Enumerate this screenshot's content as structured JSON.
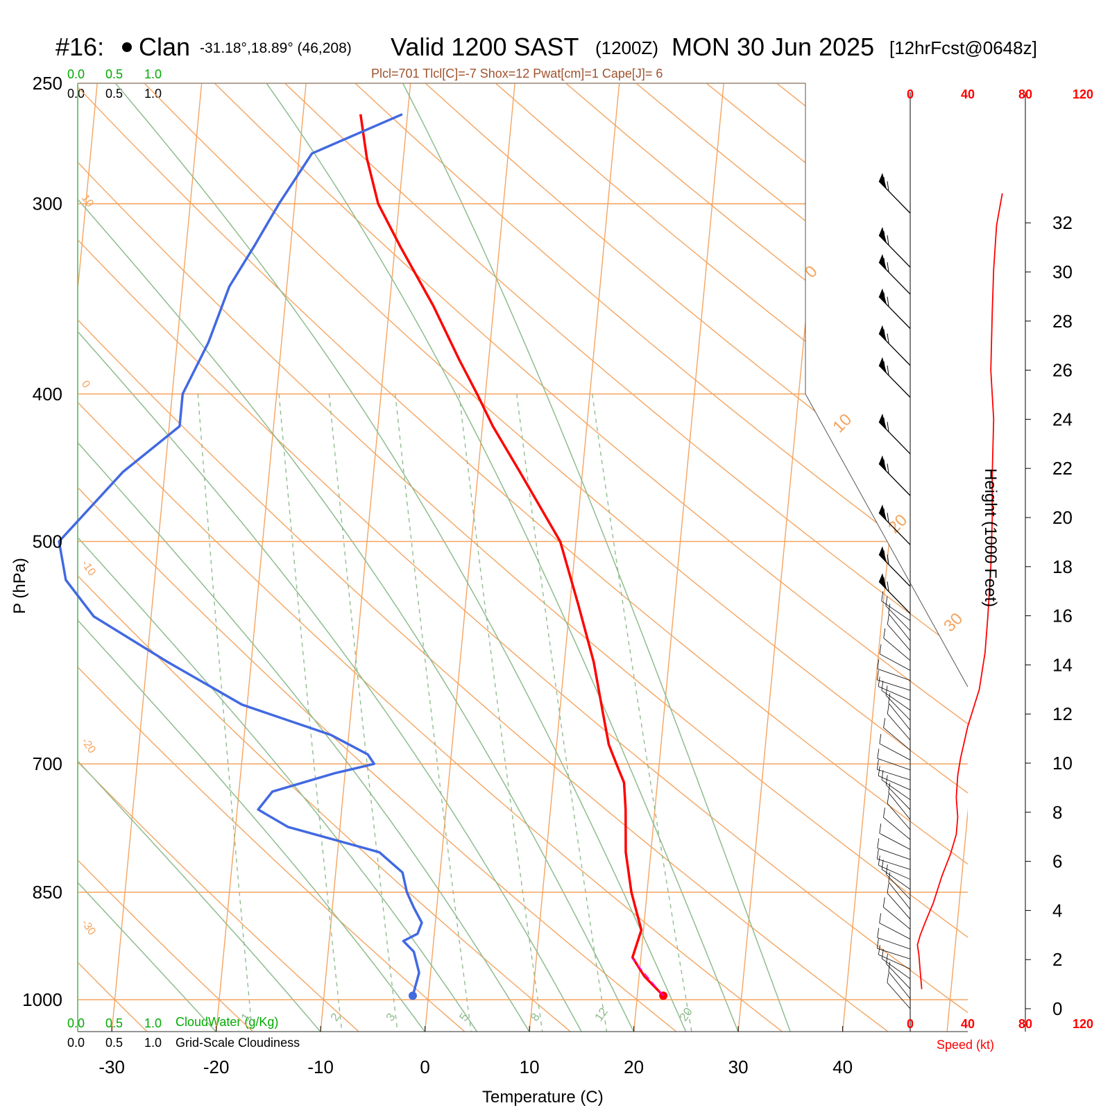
{
  "header": {
    "station_id": "#16:",
    "station_name": "Clan",
    "location": "-31.18°,18.89° (46,208)",
    "valid_main": "Valid 1200 SAST",
    "valid_z": "(1200Z)",
    "valid_date": "MON 30 Jun 2025",
    "forecast": "[12hrFcst@0648z]"
  },
  "indices": {
    "text": "Plcl=701 Tlcl[C]=-7 Shox=12 Pwat[cm]=1 Cape[J]= 6"
  },
  "cloud_scales": {
    "top_green": [
      "0.0",
      "0.5",
      "1.0"
    ],
    "top_black": [
      "0.0",
      "0.5",
      "1.0"
    ],
    "bottom_green": [
      "0.0",
      "0.5",
      "1.0"
    ],
    "bottom_black": [
      "0.0",
      "0.5",
      "1.0"
    ],
    "cloudwater_label": "CloudWater (g/Kg)",
    "cloudiness_label": "Grid-Scale Cloudiness"
  },
  "speed_axis": {
    "ticks": [
      "0",
      "40",
      "80",
      "120"
    ],
    "label": "Speed (kt)"
  },
  "colors": {
    "temperature": "#ff0000",
    "dewpoint": "#4169e1",
    "isotherm": "#f4a460",
    "dry_adiabat": "#f4a460",
    "moist_adiabat": "#8fbc8f",
    "mixing_ratio": "#8fbc8f",
    "parcel": "#ff00ff",
    "wind_speed": "#ff0000",
    "cloud_green": "#00aa00"
  },
  "chart_data": {
    "type": "line",
    "subtype": "skew-T log-P diagram",
    "xlabel": "Temperature (C)",
    "ylabel": "P (hPa)",
    "y2label": "Height (1000 Feet)",
    "x_ticks": [
      -30,
      -20,
      -10,
      0,
      10,
      20,
      30,
      40
    ],
    "p_ticks": [
      250,
      300,
      400,
      500,
      700,
      850,
      1000
    ],
    "height_ticks": [
      0,
      2,
      4,
      6,
      8,
      10,
      12,
      14,
      16,
      18,
      20,
      22,
      24,
      26,
      28,
      30,
      32
    ],
    "isotherm_labels": [
      {
        "t": -30,
        "text": "-30"
      },
      {
        "t": -20,
        "text": "-20"
      },
      {
        "t": -10,
        "text": "-10"
      },
      {
        "t": 0,
        "text": "0"
      },
      {
        "t": 10,
        "text": "10"
      },
      {
        "t": 0,
        "text": "0"
      },
      {
        "t": 10,
        "text": "10"
      },
      {
        "t": 20,
        "text": "20"
      },
      {
        "t": 30,
        "text": "30"
      }
    ],
    "mixing_ratio_labels": [
      "1",
      "2",
      "3",
      "5",
      "8",
      "12",
      "20"
    ],
    "series": [
      {
        "name": "temperature",
        "points": [
          [
            994,
            22.5
          ],
          [
            965,
            20.5
          ],
          [
            938,
            19.2
          ],
          [
            925,
            19.4
          ],
          [
            900,
            19.8
          ],
          [
            850,
            18.5
          ],
          [
            800,
            17.6
          ],
          [
            750,
            17.2
          ],
          [
            720,
            16.8
          ],
          [
            700,
            15.9
          ],
          [
            680,
            15.0
          ],
          [
            650,
            14.2
          ],
          [
            600,
            12.8
          ],
          [
            550,
            10.8
          ],
          [
            500,
            8.5
          ],
          [
            450,
            4.0
          ],
          [
            420,
            1.0
          ],
          [
            400,
            -0.8
          ],
          [
            380,
            -2.8
          ],
          [
            350,
            -5.8
          ],
          [
            320,
            -9.5
          ],
          [
            300,
            -12.0
          ],
          [
            280,
            -13.5
          ],
          [
            262,
            -14.5
          ]
        ]
      },
      {
        "name": "dewpoint",
        "points": [
          [
            994,
            -1.5
          ],
          [
            960,
            -1.1
          ],
          [
            930,
            -1.8
          ],
          [
            915,
            -2.9
          ],
          [
            905,
            -1.6
          ],
          [
            890,
            -1.3
          ],
          [
            870,
            -2.2
          ],
          [
            850,
            -3.0
          ],
          [
            825,
            -3.6
          ],
          [
            800,
            -6.0
          ],
          [
            770,
            -15.0
          ],
          [
            750,
            -18.0
          ],
          [
            730,
            -16.8
          ],
          [
            710,
            -11.0
          ],
          [
            700,
            -7.3
          ],
          [
            690,
            -8.0
          ],
          [
            670,
            -11.7
          ],
          [
            640,
            -20.5
          ],
          [
            600,
            -28.0
          ],
          [
            560,
            -35.5
          ],
          [
            530,
            -38.5
          ],
          [
            500,
            -39.5
          ],
          [
            450,
            -34.0
          ],
          [
            420,
            -29.0
          ],
          [
            400,
            -29.0
          ],
          [
            370,
            -27.0
          ],
          [
            340,
            -25.5
          ],
          [
            320,
            -23.5
          ],
          [
            300,
            -21.5
          ],
          [
            278,
            -18.8
          ],
          [
            262,
            -10.5
          ]
        ]
      },
      {
        "name": "parcel",
        "points": [
          [
            994,
            22.5
          ],
          [
            940,
            19.2
          ]
        ]
      },
      {
        "name": "wind_speed",
        "points": [
          [
            0.8,
            8
          ],
          [
            1.5,
            7
          ],
          [
            2.2,
            6
          ],
          [
            2.6,
            5
          ],
          [
            3.0,
            7
          ],
          [
            3.6,
            11
          ],
          [
            4.3,
            16
          ],
          [
            5.4,
            22
          ],
          [
            6.3,
            28
          ],
          [
            7.1,
            32
          ],
          [
            7.8,
            33
          ],
          [
            8.6,
            32
          ],
          [
            9.5,
            33
          ],
          [
            10.2,
            35
          ],
          [
            11.5,
            40
          ],
          [
            13.0,
            48
          ],
          [
            14.5,
            52
          ],
          [
            16.0,
            54
          ],
          [
            18.0,
            56
          ],
          [
            20.0,
            57
          ],
          [
            21.8,
            57
          ],
          [
            24.0,
            58
          ],
          [
            26.0,
            56
          ],
          [
            28.4,
            57
          ],
          [
            30.1,
            58
          ],
          [
            31.9,
            60
          ],
          [
            33.2,
            64
          ]
        ]
      }
    ],
    "wind_barbs_upper": [
      {
        "h": 33.1,
        "speed": 55
      },
      {
        "h": 30.9,
        "speed": 55
      },
      {
        "h": 29.8,
        "speed": 55
      },
      {
        "h": 28.4,
        "speed": 55
      },
      {
        "h": 26.9,
        "speed": 55
      },
      {
        "h": 25.6,
        "speed": 55
      },
      {
        "h": 23.3,
        "speed": 55
      },
      {
        "h": 21.6,
        "speed": 55
      },
      {
        "h": 19.6,
        "speed": 55
      },
      {
        "h": 17.9,
        "speed": 55
      },
      {
        "h": 16.8,
        "speed": 55
      }
    ],
    "wind_barbs_lower_count": 40
  }
}
